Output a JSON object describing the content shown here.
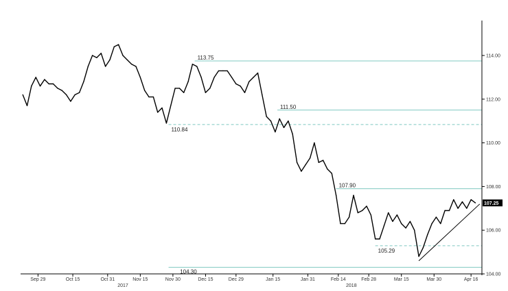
{
  "chart_data": {
    "type": "line",
    "title": "",
    "xlabel": "",
    "ylabel": "",
    "ylim": [
      104.0,
      115.6
    ],
    "y_ticks": [
      {
        "value": 104,
        "label": "104.00"
      },
      {
        "value": 106,
        "label": "106.00"
      },
      {
        "value": 108,
        "label": "108.00"
      },
      {
        "value": 110,
        "label": "110.00"
      },
      {
        "value": 112,
        "label": "112.00"
      },
      {
        "value": 114,
        "label": "114.00"
      }
    ],
    "x_ticks": [
      {
        "date": "2017-09-29",
        "label": "Sep 29"
      },
      {
        "date": "2017-10-15",
        "label": "Oct 15"
      },
      {
        "date": "2017-10-31",
        "label": "Oct 31"
      },
      {
        "date": "2017-11-15",
        "label": "Nov 15"
      },
      {
        "date": "2017-11-30",
        "label": "Nov 30"
      },
      {
        "date": "2017-12-15",
        "label": "Dec 15"
      },
      {
        "date": "2017-12-29",
        "label": "Dec 29"
      },
      {
        "date": "2018-01-15",
        "label": "Jan 15"
      },
      {
        "date": "2018-01-31",
        "label": "Jan 31"
      },
      {
        "date": "2018-02-14",
        "label": "Feb 14"
      },
      {
        "date": "2018-02-28",
        "label": "Feb 28"
      },
      {
        "date": "2018-03-15",
        "label": "Mar 15"
      },
      {
        "date": "2018-03-30",
        "label": "Mar 30"
      },
      {
        "date": "2018-04-16",
        "label": "Apr 16"
      }
    ],
    "year_labels": [
      {
        "date": "2017-11-07",
        "label": "2017"
      },
      {
        "date": "2018-02-20",
        "label": "2018"
      }
    ],
    "series": [
      {
        "color": "#000000",
        "points": [
          [
            "2017-09-22",
            112.2
          ],
          [
            "2017-09-24",
            111.7
          ],
          [
            "2017-09-26",
            112.6
          ],
          [
            "2017-09-28",
            113.0
          ],
          [
            "2017-09-30",
            112.6
          ],
          [
            "2017-10-02",
            112.9
          ],
          [
            "2017-10-04",
            112.7
          ],
          [
            "2017-10-06",
            112.7
          ],
          [
            "2017-10-08",
            112.5
          ],
          [
            "2017-10-10",
            112.4
          ],
          [
            "2017-10-12",
            112.2
          ],
          [
            "2017-10-14",
            111.9
          ],
          [
            "2017-10-16",
            112.2
          ],
          [
            "2017-10-18",
            112.3
          ],
          [
            "2017-10-20",
            112.8
          ],
          [
            "2017-10-22",
            113.5
          ],
          [
            "2017-10-24",
            114.0
          ],
          [
            "2017-10-26",
            113.9
          ],
          [
            "2017-10-28",
            114.1
          ],
          [
            "2017-10-30",
            113.5
          ],
          [
            "2017-11-01",
            113.8
          ],
          [
            "2017-11-03",
            114.4
          ],
          [
            "2017-11-05",
            114.5
          ],
          [
            "2017-11-07",
            114.0
          ],
          [
            "2017-11-09",
            113.8
          ],
          [
            "2017-11-11",
            113.6
          ],
          [
            "2017-11-13",
            113.5
          ],
          [
            "2017-11-15",
            113.0
          ],
          [
            "2017-11-17",
            112.4
          ],
          [
            "2017-11-19",
            112.1
          ],
          [
            "2017-11-21",
            112.1
          ],
          [
            "2017-11-23",
            111.4
          ],
          [
            "2017-11-25",
            111.6
          ],
          [
            "2017-11-27",
            110.9
          ],
          [
            "2017-11-29",
            111.7
          ],
          [
            "2017-12-01",
            112.5
          ],
          [
            "2017-12-03",
            112.5
          ],
          [
            "2017-12-05",
            112.3
          ],
          [
            "2017-12-07",
            112.8
          ],
          [
            "2017-12-09",
            113.6
          ],
          [
            "2017-12-11",
            113.5
          ],
          [
            "2017-12-13",
            113.0
          ],
          [
            "2017-12-15",
            112.3
          ],
          [
            "2017-12-17",
            112.5
          ],
          [
            "2017-12-19",
            113.0
          ],
          [
            "2017-12-21",
            113.3
          ],
          [
            "2017-12-23",
            113.3
          ],
          [
            "2017-12-25",
            113.3
          ],
          [
            "2017-12-27",
            113.0
          ],
          [
            "2017-12-29",
            112.7
          ],
          [
            "2017-12-31",
            112.6
          ],
          [
            "2018-01-02",
            112.3
          ],
          [
            "2018-01-04",
            112.8
          ],
          [
            "2018-01-06",
            113.0
          ],
          [
            "2018-01-08",
            113.2
          ],
          [
            "2018-01-10",
            112.2
          ],
          [
            "2018-01-12",
            111.2
          ],
          [
            "2018-01-14",
            111.0
          ],
          [
            "2018-01-16",
            110.5
          ],
          [
            "2018-01-18",
            111.1
          ],
          [
            "2018-01-20",
            110.7
          ],
          [
            "2018-01-22",
            111.0
          ],
          [
            "2018-01-24",
            110.4
          ],
          [
            "2018-01-26",
            109.1
          ],
          [
            "2018-01-28",
            108.7
          ],
          [
            "2018-01-30",
            109.0
          ],
          [
            "2018-02-01",
            109.3
          ],
          [
            "2018-02-03",
            110.0
          ],
          [
            "2018-02-05",
            109.1
          ],
          [
            "2018-02-07",
            109.2
          ],
          [
            "2018-02-09",
            108.8
          ],
          [
            "2018-02-11",
            108.6
          ],
          [
            "2018-02-13",
            107.6
          ],
          [
            "2018-02-15",
            106.3
          ],
          [
            "2018-02-17",
            106.3
          ],
          [
            "2018-02-19",
            106.6
          ],
          [
            "2018-02-21",
            107.6
          ],
          [
            "2018-02-23",
            106.8
          ],
          [
            "2018-02-25",
            106.9
          ],
          [
            "2018-02-27",
            107.1
          ],
          [
            "2018-03-01",
            106.7
          ],
          [
            "2018-03-03",
            105.6
          ],
          [
            "2018-03-05",
            105.6
          ],
          [
            "2018-03-07",
            106.2
          ],
          [
            "2018-03-09",
            106.8
          ],
          [
            "2018-03-11",
            106.4
          ],
          [
            "2018-03-13",
            106.7
          ],
          [
            "2018-03-15",
            106.3
          ],
          [
            "2018-03-17",
            106.1
          ],
          [
            "2018-03-19",
            106.4
          ],
          [
            "2018-03-21",
            106.0
          ],
          [
            "2018-03-23",
            104.8
          ],
          [
            "2018-03-25",
            105.2
          ],
          [
            "2018-03-27",
            105.8
          ],
          [
            "2018-03-29",
            106.3
          ],
          [
            "2018-03-31",
            106.6
          ],
          [
            "2018-04-02",
            106.3
          ],
          [
            "2018-04-04",
            106.9
          ],
          [
            "2018-04-06",
            106.9
          ],
          [
            "2018-04-08",
            107.4
          ],
          [
            "2018-04-10",
            107.0
          ],
          [
            "2018-04-12",
            107.3
          ],
          [
            "2018-04-14",
            107.0
          ],
          [
            "2018-04-16",
            107.4
          ],
          [
            "2018-04-18",
            107.25
          ]
        ]
      }
    ],
    "levels": [
      {
        "value": 113.75,
        "label": "113.75",
        "style": "solid",
        "from_date": "2017-12-10",
        "label_date": "2017-12-10"
      },
      {
        "value": 111.5,
        "label": "111.50",
        "style": "solid",
        "from_date": "2018-01-17",
        "label_date": "2018-01-17"
      },
      {
        "value": 110.84,
        "label": "110.84",
        "style": "dashed",
        "from_date": "2017-11-28",
        "label_date": "2017-11-28"
      },
      {
        "value": 107.9,
        "label": "107.90",
        "style": "solid",
        "from_date": "2018-02-13",
        "label_date": "2018-02-13"
      },
      {
        "value": 105.29,
        "label": "105.29",
        "style": "dashed",
        "from_date": "2018-03-03",
        "label_date": "2018-03-03"
      },
      {
        "value": 104.3,
        "label": "104.30",
        "style": "solid",
        "from_date": "2017-11-28",
        "label_date": "2017-12-02"
      }
    ],
    "trendline": {
      "from": [
        "2018-03-23",
        104.6
      ],
      "to": [
        "2018-04-20",
        107.2
      ]
    },
    "last_value": {
      "value": 107.25,
      "label": "107.25"
    },
    "grid": false,
    "legend": "none",
    "colors": {
      "price": "#000000",
      "level_line": "#7fc8c0",
      "trendline": "#000000",
      "last_badge": "#000000",
      "axis": "#000000"
    }
  }
}
